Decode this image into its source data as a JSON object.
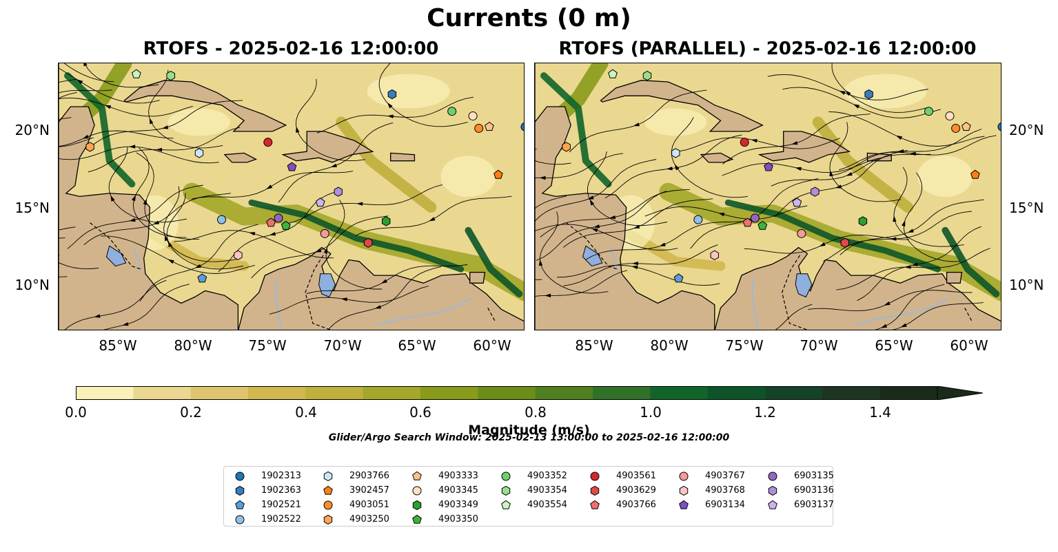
{
  "figure": {
    "title": "Currents (0 m)",
    "panels": [
      {
        "title": "RTOFS - 2025-02-16 12:00:00"
      },
      {
        "title": "RTOFS (PARALLEL) - 2025-02-16 12:00:00"
      }
    ],
    "lat_ticks": [
      "20°N",
      "15°N",
      "10°N"
    ],
    "lon_ticks": [
      "85°W",
      "80°W",
      "75°W",
      "70°W",
      "65°W",
      "60°W"
    ],
    "extent": {
      "lon_min": -89.4,
      "lon_max": -58.2,
      "lat_min": 7.0,
      "lat_max": 24.3
    }
  },
  "colorbar": {
    "label": "Magnitude (m/s)",
    "ticks": [
      "0.0",
      "0.2",
      "0.4",
      "0.6",
      "0.8",
      "1.0",
      "1.2",
      "1.4"
    ],
    "colors": [
      "#f9f1b8",
      "#ead890",
      "#dec46c",
      "#d1b84f",
      "#bfaf3d",
      "#a3a72a",
      "#8a9b1b",
      "#6d8d18",
      "#4f7f1f",
      "#2f7227",
      "#11652a",
      "#0d5528",
      "#154327",
      "#1d3521",
      "#1b2b1a"
    ],
    "min": 0.0,
    "max": 1.5,
    "extend": "max"
  },
  "search_window": "Glider/Argo Search Window: 2025-02-13 13:00:00 to 2025-02-16 12:00:00",
  "legend": [
    {
      "id": "1902313",
      "marker": "circle",
      "color": "#1f77b4"
    },
    {
      "id": "1902363",
      "marker": "hexagon",
      "color": "#3a7dbf"
    },
    {
      "id": "1902521",
      "marker": "pentagon",
      "color": "#5a9fd4"
    },
    {
      "id": "1902522",
      "marker": "circle",
      "color": "#8fc0e8"
    },
    {
      "id": "2903766",
      "marker": "hexagon",
      "color": "#cde6f7"
    },
    {
      "id": "3902457",
      "marker": "pentagon",
      "color": "#ff7f0e"
    },
    {
      "id": "4903051",
      "marker": "circle",
      "color": "#ff8c2a"
    },
    {
      "id": "4903250",
      "marker": "hexagon",
      "color": "#ffa552"
    },
    {
      "id": "4903333",
      "marker": "pentagon",
      "color": "#ffc289"
    },
    {
      "id": "4903345",
      "marker": "circle",
      "color": "#ffe0c2"
    },
    {
      "id": "4903349",
      "marker": "hexagon",
      "color": "#2ca02c"
    },
    {
      "id": "4903350",
      "marker": "pentagon",
      "color": "#3cb43c"
    },
    {
      "id": "4903352",
      "marker": "circle",
      "color": "#6fcf6f"
    },
    {
      "id": "4903354",
      "marker": "hexagon",
      "color": "#98df8a"
    },
    {
      "id": "4903554",
      "marker": "pentagon",
      "color": "#c9f5c0"
    },
    {
      "id": "4903561",
      "marker": "circle",
      "color": "#d62728"
    },
    {
      "id": "4903629",
      "marker": "hexagon",
      "color": "#e0474a"
    },
    {
      "id": "4903766",
      "marker": "pentagon",
      "color": "#ee7070"
    },
    {
      "id": "4903767",
      "marker": "circle",
      "color": "#f59a9a"
    },
    {
      "id": "4903768",
      "marker": "hexagon",
      "color": "#fbc4c4"
    },
    {
      "id": "6903134",
      "marker": "pentagon",
      "color": "#7f4fc0"
    },
    {
      "id": "6903135",
      "marker": "circle",
      "color": "#9467bd"
    },
    {
      "id": "6903136",
      "marker": "hexagon",
      "color": "#b08fd8"
    },
    {
      "id": "6903137",
      "marker": "pentagon",
      "color": "#cbb5ee"
    }
  ],
  "floats": [
    {
      "id": "1902313",
      "lon": -58.2,
      "lat": 20.2
    },
    {
      "id": "1902363",
      "lon": -67.1,
      "lat": 22.3
    },
    {
      "id": "1902521",
      "lon": -79.8,
      "lat": 10.4
    },
    {
      "id": "1902522",
      "lon": -78.5,
      "lat": 14.2
    },
    {
      "id": "2903766",
      "lon": -80.0,
      "lat": 18.5
    },
    {
      "id": "3902457",
      "lon": -60.0,
      "lat": 17.1
    },
    {
      "id": "4903051",
      "lon": -61.3,
      "lat": 20.1
    },
    {
      "id": "4903250",
      "lon": -87.3,
      "lat": 18.9
    },
    {
      "id": "4903333",
      "lon": -60.6,
      "lat": 20.2
    },
    {
      "id": "4903345",
      "lon": -61.7,
      "lat": 20.9
    },
    {
      "id": "4903349",
      "lon": -67.5,
      "lat": 14.1
    },
    {
      "id": "4903350",
      "lon": -74.2,
      "lat": 13.8
    },
    {
      "id": "4903352",
      "lon": -63.1,
      "lat": 21.2
    },
    {
      "id": "4903354",
      "lon": -81.9,
      "lat": 23.5
    },
    {
      "id": "4903554",
      "lon": -84.2,
      "lat": 23.6
    },
    {
      "id": "4903561",
      "lon": -75.4,
      "lat": 19.2
    },
    {
      "id": "4903629",
      "lon": -68.7,
      "lat": 12.7
    },
    {
      "id": "4903766",
      "lon": -75.2,
      "lat": 14.0
    },
    {
      "id": "4903767",
      "lon": -71.6,
      "lat": 13.3
    },
    {
      "id": "4903768",
      "lon": -77.4,
      "lat": 11.9
    },
    {
      "id": "6903134",
      "lon": -73.8,
      "lat": 17.6
    },
    {
      "id": "6903135",
      "lon": -74.7,
      "lat": 14.3
    },
    {
      "id": "6903136",
      "lon": -70.7,
      "lat": 16.0
    },
    {
      "id": "6903137",
      "lon": -71.9,
      "lat": 15.3
    }
  ]
}
